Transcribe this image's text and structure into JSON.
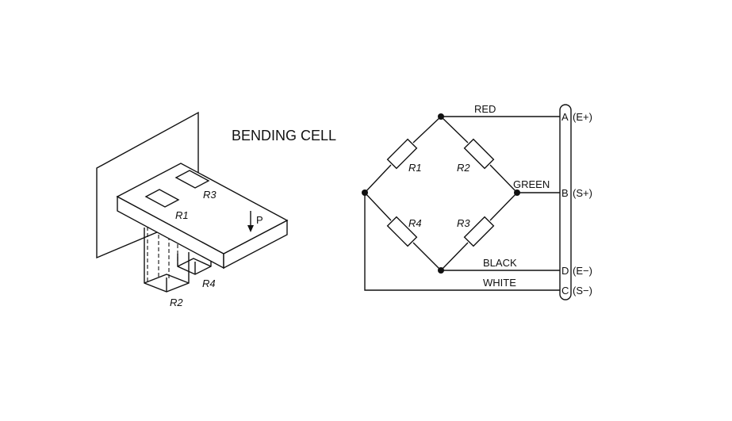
{
  "title": "BENDING CELL",
  "cell": {
    "gauges": {
      "r1": "R1",
      "r2": "R2",
      "r3": "R3",
      "r4": "R4"
    },
    "load": "P"
  },
  "bridge": {
    "resistors": {
      "r1": "R1",
      "r2": "R2",
      "r3": "R3",
      "r4": "R4"
    },
    "wires": {
      "red": "RED",
      "green": "GREEN",
      "black": "BLACK",
      "white": "WHITE"
    },
    "terminals": {
      "a": {
        "letter": "A",
        "signal": "(E+)"
      },
      "b": {
        "letter": "B",
        "signal": "(S+)"
      },
      "d": {
        "letter": "D",
        "signal": "(E−)"
      },
      "c": {
        "letter": "C",
        "signal": "(S−)"
      }
    }
  }
}
